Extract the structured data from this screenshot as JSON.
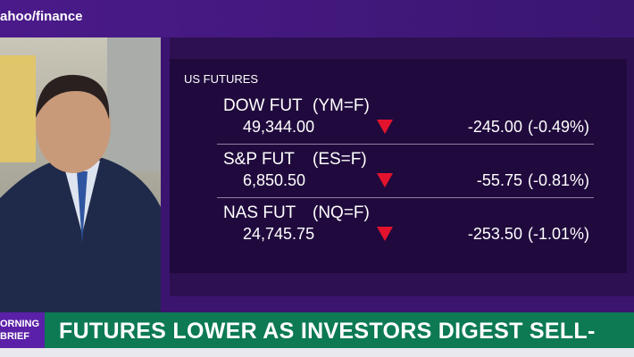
{
  "header": {
    "logo": "ahoo/finance"
  },
  "panel": {
    "title": "US FUTURES",
    "rows": [
      {
        "name": "DOW FUT",
        "ticker": "(YM=F)",
        "price": "49,344.00",
        "change": "-245.00",
        "change_pct": "(-0.49%)"
      },
      {
        "name": "S&P FUT",
        "ticker": "(ES=F)",
        "price": "6,850.50",
        "change": "-55.75",
        "change_pct": "(-0.81%)"
      },
      {
        "name": "NAS FUT",
        "ticker": "(NQ=F)",
        "price": "24,745.75",
        "change": "-253.50",
        "change_pct": "(-1.01%)"
      }
    ]
  },
  "banner": {
    "label": [
      "ORNING",
      "BRIEF"
    ],
    "headline": "FUTURES LOWER AS INVESTORS DIGEST SELL-OFF"
  }
}
